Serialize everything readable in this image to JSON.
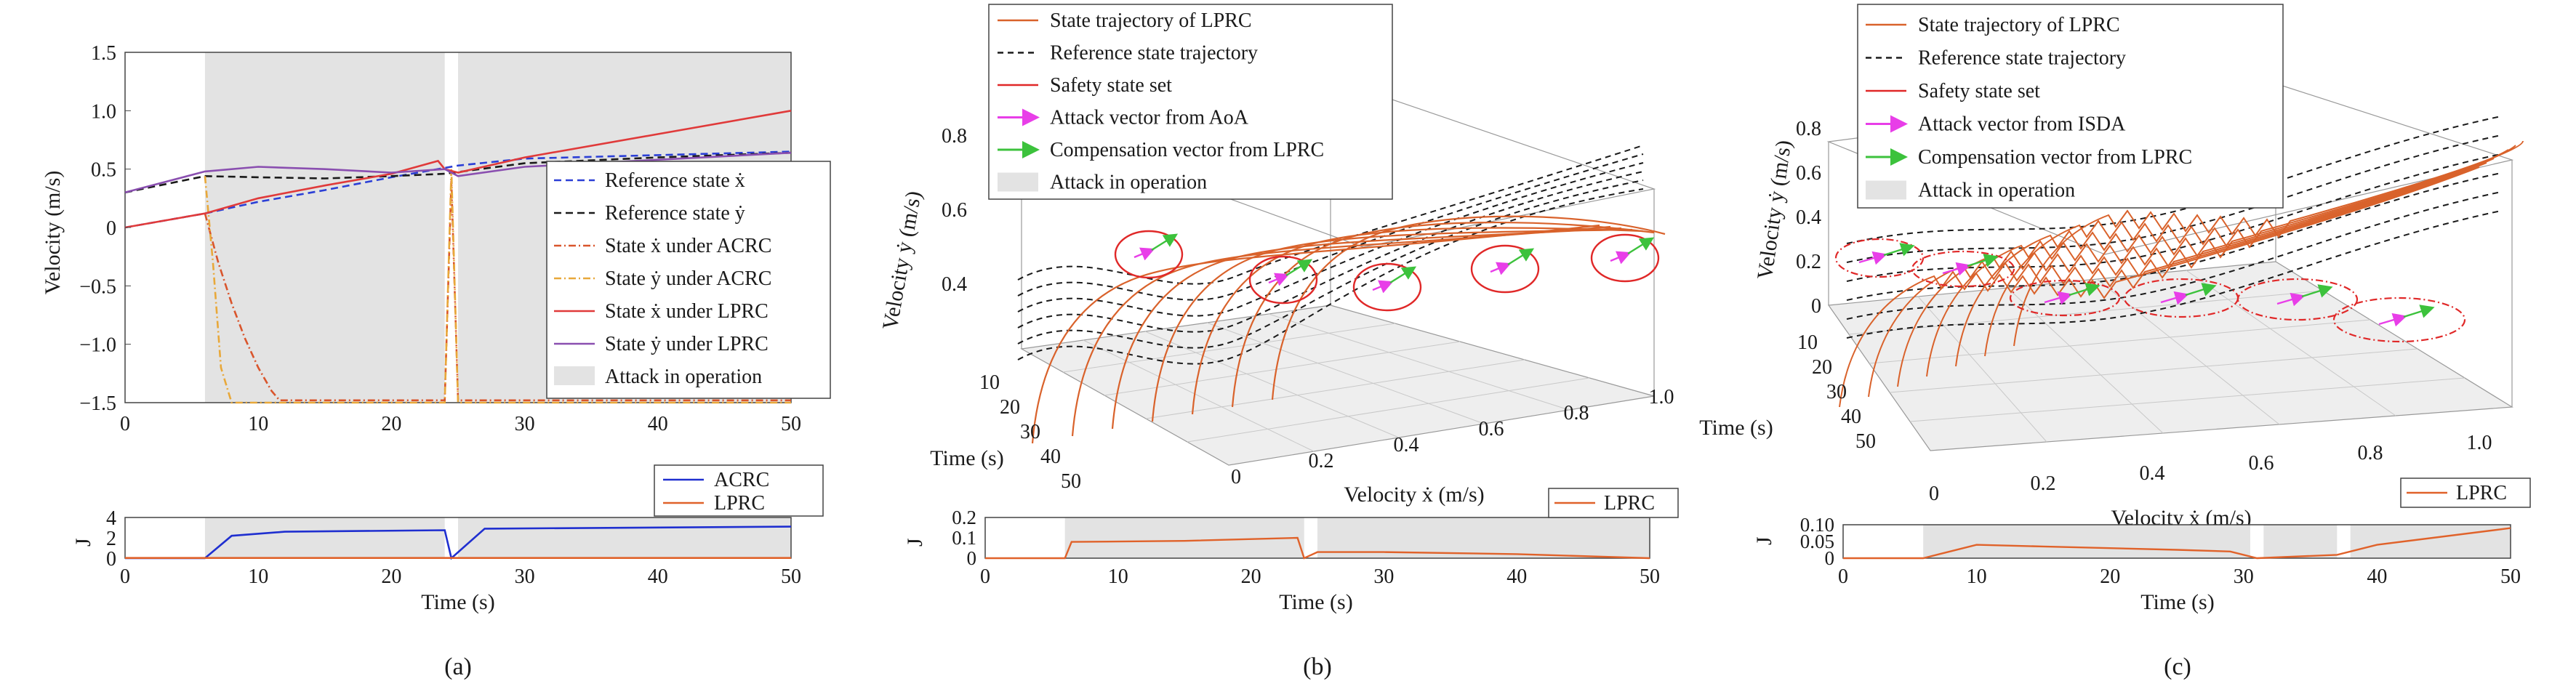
{
  "panel_labels": [
    "(a)",
    "(b)",
    "(c)"
  ],
  "colors": {
    "attack": "#e3e3e3",
    "reference": "#1a1a1a",
    "ref_x": "#2b3fd6",
    "state_x_acrc": "#d9552c",
    "state_y_acrc": "#e8a83a",
    "lprc": "#e03a3a",
    "lprc_y": "#8a4fb0",
    "acrc_J": "#1f2fd0",
    "lprc_J": "#e0622a",
    "traj": "#d9622b",
    "safety": "#e02828",
    "attack_vec": "#e83ee8",
    "comp_vec": "#3cc23c"
  },
  "chart_data": [
    {
      "id": "a",
      "type": "line",
      "ylabel": "Velocity (m/s)",
      "xlim": [
        0,
        50
      ],
      "ylim": [
        -1.5,
        1.5
      ],
      "xticks": [
        "0",
        "10",
        "20",
        "30",
        "40",
        "50"
      ],
      "yticks": [
        "1.5",
        "1.0",
        "0.5",
        "0",
        "−0.5",
        "−1.0",
        "−1.5"
      ],
      "attack_intervals": [
        [
          6,
          24
        ],
        [
          25,
          50
        ]
      ],
      "legend": [
        "Reference state ẋ",
        "Reference state ẏ",
        "State ẋ under ACRC",
        "State ẏ under ACRC",
        "State ẋ under LPRC",
        "State ẏ under LPRC",
        "Attack in operation"
      ],
      "series": [
        {
          "name": "Reference state ẋ",
          "style": "dashed",
          "x": [
            0,
            6,
            10,
            15,
            20,
            25,
            30,
            40,
            50
          ],
          "y": [
            0.0,
            0.12,
            0.22,
            0.32,
            0.43,
            0.53,
            0.59,
            0.62,
            0.65
          ]
        },
        {
          "name": "Reference state ẏ",
          "style": "dashed",
          "x": [
            0,
            6,
            10,
            15,
            20,
            24,
            30,
            40,
            50
          ],
          "y": [
            0.3,
            0.44,
            0.43,
            0.42,
            0.44,
            0.46,
            0.55,
            0.6,
            0.64
          ]
        },
        {
          "name": "State ẋ under ACRC",
          "style": "dashdot",
          "x": [
            6,
            7,
            8,
            9,
            10,
            11,
            11.6,
            24,
            24.5,
            25,
            50
          ],
          "y": [
            0.12,
            -0.3,
            -0.65,
            -0.95,
            -1.2,
            -1.4,
            -1.48,
            -1.48,
            0.4,
            -1.48,
            -1.48
          ]
        },
        {
          "name": "State ẏ under ACRC",
          "style": "dashdot",
          "x": [
            6,
            6.6,
            7.2,
            8,
            24,
            24.5,
            25,
            50
          ],
          "y": [
            0.44,
            -0.3,
            -1.2,
            -1.5,
            -1.5,
            0.5,
            -1.5,
            -1.5
          ]
        },
        {
          "name": "State ẋ under LPRC",
          "style": "solid",
          "x": [
            0,
            6,
            10,
            15,
            20,
            23.5,
            24,
            25,
            30,
            40,
            50
          ],
          "y": [
            0.0,
            0.12,
            0.25,
            0.36,
            0.46,
            0.57,
            0.5,
            0.47,
            0.6,
            0.8,
            1.0
          ]
        },
        {
          "name": "State ẏ under LPRC",
          "style": "solid",
          "x": [
            0,
            6,
            10,
            15,
            20,
            24,
            25,
            30,
            40,
            50
          ],
          "y": [
            0.3,
            0.48,
            0.52,
            0.5,
            0.47,
            0.5,
            0.44,
            0.52,
            0.58,
            0.64
          ]
        }
      ],
      "sub": {
        "ylabel": "J",
        "xlabel": "Time (s)",
        "ylim": [
          0,
          4
        ],
        "yticks": [
          "4",
          "2",
          "0"
        ],
        "legend": [
          "ACRC",
          "LPRC"
        ],
        "series": [
          {
            "name": "ACRC",
            "x": [
              0,
              6,
              8,
              12,
              24,
              24.5,
              27,
              50
            ],
            "y": [
              0,
              0,
              2.2,
              2.6,
              2.75,
              0,
              2.9,
              3.1
            ]
          },
          {
            "name": "LPRC",
            "x": [
              0,
              50
            ],
            "y": [
              0.02,
              0.02
            ]
          }
        ]
      }
    },
    {
      "id": "b",
      "type": "line",
      "projection": "3d",
      "xlabel": "Velocity ẋ (m/s)",
      "ylabel": "Velocity ẏ (m/s)",
      "tlabel": "Time (s)",
      "xticks": [
        "0",
        "0.2",
        "0.4",
        "0.6",
        "0.8",
        "1.0"
      ],
      "yticks": [
        "0.4",
        "0.6",
        "0.8"
      ],
      "tticks": [
        "10",
        "20",
        "30",
        "40",
        "50"
      ],
      "legend": [
        "State trajectory of LPRC",
        "Reference state trajectory",
        "Safety state set",
        "Attack vector from AoA",
        "Compensation vector from LPRC",
        "Attack in operation"
      ],
      "sub": {
        "ylabel": "J",
        "xlabel": "Time (s)",
        "ylim": [
          0,
          0.2
        ],
        "yticks": [
          "0.2",
          "0.1",
          "0"
        ],
        "legend": [
          "LPRC"
        ],
        "attack_intervals": [
          [
            6,
            24
          ],
          [
            25,
            50
          ]
        ],
        "series": [
          {
            "name": "LPRC",
            "x": [
              0,
              6,
              6.5,
              15,
              23.5,
              24,
              25,
              30,
              40,
              50
            ],
            "y": [
              0,
              0,
              0.08,
              0.085,
              0.1,
              0,
              0.03,
              0.03,
              0.02,
              0
            ]
          }
        ]
      }
    },
    {
      "id": "c",
      "type": "line",
      "projection": "3d",
      "xlabel": "Velocity ẋ (m/s)",
      "ylabel": "Velocity ẏ (m/s)",
      "tlabel": "Time (s)",
      "xticks": [
        "0",
        "0.2",
        "0.4",
        "0.6",
        "0.8",
        "1.0"
      ],
      "yticks": [
        "0",
        "0.2",
        "0.4",
        "0.6",
        "0.8"
      ],
      "tticks": [
        "10",
        "20",
        "30",
        "40",
        "50"
      ],
      "legend": [
        "State trajectory of LPRC",
        "Reference state trajectory",
        "Safety state set",
        "Attack vector from ISDA",
        "Compensation vector from LPRC",
        "Attack in operation"
      ],
      "sub": {
        "ylabel": "J",
        "xlabel": "Time (s)",
        "ylim": [
          0,
          0.1
        ],
        "yticks": [
          "0.10",
          "0.05",
          "0"
        ],
        "legend": [
          "LPRC"
        ],
        "attack_intervals": [
          [
            6,
            30.5
          ],
          [
            31.5,
            37
          ],
          [
            38,
            50
          ]
        ],
        "series": [
          {
            "name": "LPRC",
            "x": [
              0,
              6,
              10,
              15,
              20,
              25,
              29,
              31,
              37,
              40,
              50
            ],
            "y": [
              0,
              0,
              0.04,
              0.035,
              0.03,
              0.025,
              0.02,
              0,
              0.01,
              0.04,
              0.09
            ]
          }
        ]
      }
    }
  ]
}
